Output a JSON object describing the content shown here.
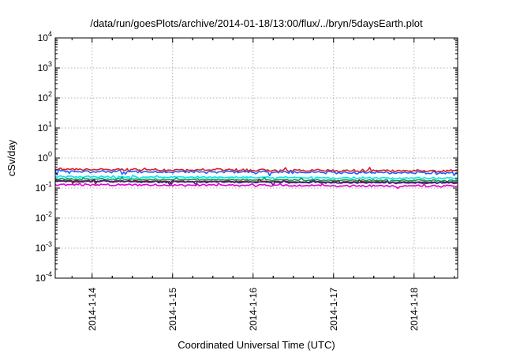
{
  "chart_data": {
    "type": "line",
    "title": "/data/run/goesPlots/archive/2014-01-18/13:00/flux/../bryn/5daysEarth.plot",
    "xlabel": "Coordinated Universal Time (UTC)",
    "ylabel": "cSv/day",
    "yscale": "log",
    "ylim": [
      0.0001,
      10000
    ],
    "y_ticks": [
      {
        "base": "10",
        "exp": "-4",
        "value": 0.0001
      },
      {
        "base": "10",
        "exp": "-3",
        "value": 0.001
      },
      {
        "base": "10",
        "exp": "-2",
        "value": 0.01
      },
      {
        "base": "10",
        "exp": "-1",
        "value": 0.1
      },
      {
        "base": "10",
        "exp": "0",
        "value": 1
      },
      {
        "base": "10",
        "exp": "1",
        "value": 10
      },
      {
        "base": "10",
        "exp": "2",
        "value": 100
      },
      {
        "base": "10",
        "exp": "3",
        "value": 1000
      },
      {
        "base": "10",
        "exp": "4",
        "value": 10000
      }
    ],
    "xlim": [
      "2014-01-13 13:00",
      "2014-01-18 13:00"
    ],
    "x_ticks": [
      "2014-1-14",
      "2014-1-15",
      "2014-1-16",
      "2014-1-17",
      "2014-1-18"
    ],
    "grid": true,
    "series": [
      {
        "color": "#e41a1c",
        "level": 0.42,
        "noise": 0.12
      },
      {
        "color": "#1f5fff",
        "level": 0.36,
        "noise": 0.12
      },
      {
        "color": "#00e5ee",
        "level": 0.24,
        "noise": 0.08
      },
      {
        "color": "#00a050",
        "level": 0.2,
        "noise": 0.08
      },
      {
        "color": "#8b1a1a",
        "level": 0.175,
        "noise": 0.07
      },
      {
        "color": "#3a2a8a",
        "level": 0.165,
        "noise": 0.07
      },
      {
        "color": "#e000d0",
        "level": 0.13,
        "noise": 0.1
      }
    ]
  }
}
